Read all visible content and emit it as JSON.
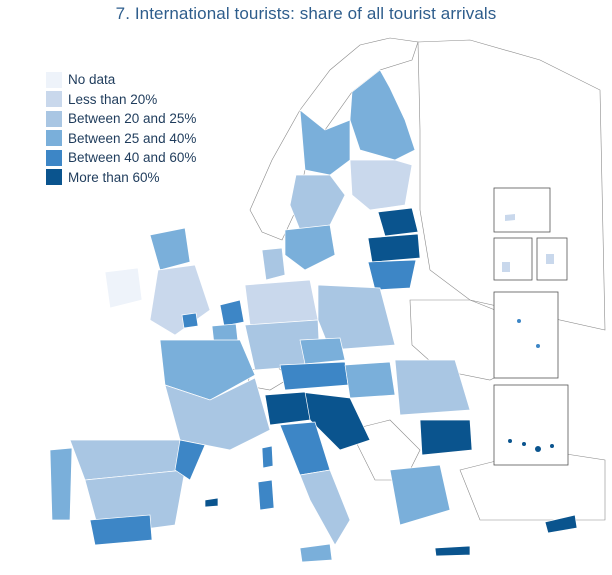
{
  "title": "7. International tourists: share of all tourist arrivals",
  "legend": [
    {
      "label": "No data",
      "color": "#eef3fa"
    },
    {
      "label": "Less than 20%",
      "color": "#c9d8ec"
    },
    {
      "label": "Between 20 and 25%",
      "color": "#a9c6e3"
    },
    {
      "label": "Between 25 and 40%",
      "color": "#7aafda"
    },
    {
      "label": "Between 40 and 60%",
      "color": "#3d86c6"
    },
    {
      "label": "More than 60%",
      "color": "#0a548e"
    }
  ],
  "colors": {
    "border": "#ffffff",
    "country_outline": "#7a7a7a",
    "non_eu": "#ffffff"
  }
}
